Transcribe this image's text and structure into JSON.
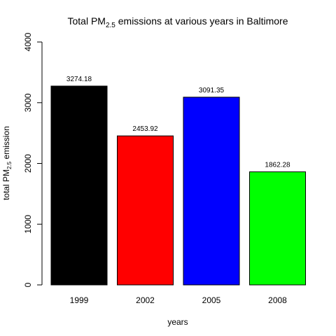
{
  "chart_data": {
    "type": "bar",
    "title": {
      "prefix": "Total PM",
      "subscript": "2.5",
      "suffix": " emissions at various years in Baltimore"
    },
    "xlabel": "years",
    "ylabel": {
      "prefix": "total PM",
      "subscript": "2.5",
      "suffix": " emission"
    },
    "categories": [
      "1999",
      "2002",
      "2005",
      "2008"
    ],
    "values": [
      3274.18,
      2453.92,
      3091.35,
      1862.28
    ],
    "value_labels": [
      "3274.18",
      "2453.92",
      "3091.35",
      "1862.28"
    ],
    "colors": [
      "#000000",
      "#ff0000",
      "#0000ff",
      "#00ff00"
    ],
    "ylim": [
      0,
      4000
    ],
    "yticks": [
      0,
      1000,
      2000,
      3000,
      4000
    ],
    "ytick_labels": [
      "0",
      "1000",
      "2000",
      "3000",
      "4000"
    ],
    "grid": false,
    "legend": "none"
  }
}
